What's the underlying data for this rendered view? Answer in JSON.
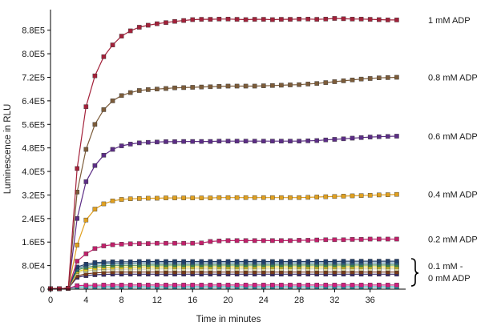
{
  "chart_data": {
    "type": "line",
    "xlabel": "Time in minutes",
    "ylabel": "Luminescence in RLU",
    "xlim": [
      0,
      40
    ],
    "ylim": [
      0,
      950000
    ],
    "x_ticks": [
      0,
      4,
      8,
      12,
      16,
      20,
      24,
      28,
      32,
      36
    ],
    "x_tick_labels": [
      "0",
      "4",
      "8",
      "12",
      "16",
      "20",
      "24",
      "28",
      "32",
      "36"
    ],
    "y_ticks": [
      0,
      80000,
      160000,
      240000,
      320000,
      400000,
      480000,
      560000,
      640000,
      720000,
      800000,
      880000
    ],
    "y_tick_labels": [
      "0",
      "8.0E4",
      "1.6E5",
      "2.4E5",
      "3.2E5",
      "4.0E5",
      "4.8E5",
      "5.6E5",
      "6.4E5",
      "7.2E5",
      "8.0E5",
      "8.8E5"
    ],
    "x": [
      0,
      1,
      2,
      3,
      4,
      5,
      6,
      7,
      8,
      9,
      10,
      11,
      12,
      13,
      14,
      15,
      16,
      17,
      18,
      19,
      20,
      21,
      22,
      23,
      24,
      25,
      26,
      27,
      28,
      29,
      30,
      31,
      32,
      33,
      34,
      35,
      36,
      37,
      38,
      39
    ],
    "series": [
      {
        "name": "1 mM ADP",
        "color": "#a3213a",
        "values": [
          2000,
          2000,
          3000,
          410000,
          620000,
          725000,
          790000,
          830000,
          860000,
          878000,
          890000,
          897000,
          902000,
          906000,
          910000,
          913000,
          916000,
          917000,
          917000,
          918000,
          918000,
          917000,
          916000,
          917000,
          917000,
          916000,
          917000,
          917000,
          918000,
          918000,
          917000,
          918000,
          920000,
          919000,
          918000,
          918000,
          917000,
          916000,
          915000,
          915000
        ]
      },
      {
        "name": "0.8 mM ADP",
        "color": "#7c5c3a",
        "values": [
          2000,
          2000,
          3000,
          330000,
          475000,
          560000,
          610000,
          640000,
          658000,
          668000,
          675000,
          678000,
          680000,
          682000,
          684000,
          685000,
          686000,
          687000,
          688000,
          689000,
          690000,
          690000,
          690000,
          690000,
          691000,
          692000,
          693000,
          694000,
          695000,
          697000,
          699000,
          702000,
          705000,
          708000,
          711000,
          714000,
          716000,
          718000,
          719000,
          720000
        ]
      },
      {
        "name": "0.6 mM ADP",
        "color": "#5c2d86",
        "values": [
          2000,
          2000,
          3000,
          240000,
          365000,
          420000,
          455000,
          475000,
          487000,
          493000,
          497000,
          499000,
          500000,
          501000,
          501000,
          502000,
          502000,
          502000,
          502000,
          503000,
          503000,
          503000,
          503000,
          503000,
          503000,
          503000,
          503000,
          503000,
          503000,
          504000,
          505000,
          507000,
          509000,
          511000,
          513000,
          515000,
          517000,
          518000,
          519000,
          520000
        ]
      },
      {
        "name": "0.4 mM ADP",
        "color": "#e0a020",
        "values": [
          2000,
          2000,
          3000,
          150000,
          235000,
          272000,
          290000,
          300000,
          305000,
          307000,
          308000,
          309000,
          309000,
          310000,
          310000,
          310000,
          310000,
          310000,
          310000,
          311000,
          311000,
          311000,
          311000,
          311000,
          311000,
          311000,
          311000,
          311000,
          311000,
          312000,
          313000,
          314000,
          315000,
          316000,
          317000,
          318000,
          319000,
          320000,
          321000,
          322000
        ]
      },
      {
        "name": "0.2 mM ADP",
        "color": "#c0206a",
        "values": [
          2000,
          2000,
          3000,
          95000,
          120000,
          138000,
          147000,
          151000,
          153000,
          154000,
          155000,
          155000,
          156000,
          156000,
          156000,
          156000,
          156000,
          157000,
          162000,
          164000,
          165000,
          165000,
          165000,
          165000,
          165000,
          165000,
          165000,
          165000,
          166000,
          166000,
          167000,
          168000,
          168000,
          168000,
          169000,
          169000,
          170000,
          170000,
          170000,
          170000
        ]
      },
      {
        "name": "",
        "color": "#1f3e6b",
        "values": [
          2000,
          2000,
          3000,
          75000,
          85000,
          90000,
          92000,
          93000,
          93000,
          93000,
          94000,
          94000,
          94000,
          94000,
          94000,
          94000,
          94000,
          94000,
          94000,
          94000,
          94000,
          94000,
          94000,
          94000,
          94000,
          94000,
          94000,
          94000,
          94000,
          94000,
          94000,
          94000,
          94000,
          95000,
          95000,
          95000,
          95000,
          95000,
          95000,
          95000
        ]
      },
      {
        "name": "",
        "color": "#2f6e8f",
        "values": [
          2000,
          2000,
          3000,
          70000,
          80000,
          85000,
          87000,
          88000,
          88000,
          88000,
          89000,
          89000,
          89000,
          89000,
          89000,
          89000,
          89000,
          89000,
          89000,
          89000,
          89000,
          89000,
          89000,
          89000,
          89000,
          89000,
          89000,
          89000,
          89000,
          89000,
          89000,
          89000,
          89000,
          89000,
          89000,
          89000,
          89000,
          89000,
          89000,
          89000
        ]
      },
      {
        "name": "",
        "color": "#3d8a4a",
        "values": [
          2000,
          2000,
          3000,
          65000,
          74000,
          78000,
          80000,
          81000,
          81000,
          81000,
          81000,
          82000,
          82000,
          82000,
          82000,
          82000,
          82000,
          82000,
          82000,
          82000,
          82000,
          82000,
          82000,
          82000,
          82000,
          82000,
          82000,
          82000,
          82000,
          82000,
          82000,
          82000,
          82000,
          82000,
          82000,
          82000,
          82000,
          82000,
          82000,
          82000
        ]
      },
      {
        "name": "",
        "color": "#e8d020",
        "values": [
          2000,
          2000,
          3000,
          60000,
          68000,
          72000,
          74000,
          75000,
          75000,
          75000,
          75000,
          76000,
          76000,
          76000,
          76000,
          76000,
          76000,
          76000,
          76000,
          76000,
          76000,
          76000,
          76000,
          76000,
          76000,
          76000,
          76000,
          76000,
          76000,
          76000,
          76000,
          76000,
          76000,
          76000,
          76000,
          76000,
          76000,
          76000,
          76000,
          76000
        ]
      },
      {
        "name": "",
        "color": "#d8d8a0",
        "values": [
          2000,
          2000,
          3000,
          55000,
          62000,
          65000,
          67000,
          68000,
          68000,
          68000,
          68000,
          68000,
          69000,
          69000,
          69000,
          69000,
          69000,
          69000,
          69000,
          69000,
          69000,
          69000,
          69000,
          69000,
          69000,
          69000,
          69000,
          69000,
          69000,
          69000,
          69000,
          69000,
          69000,
          69000,
          69000,
          69000,
          69000,
          69000,
          69000,
          69000
        ]
      },
      {
        "name": "",
        "color": "#7a3a1a",
        "values": [
          2000,
          2000,
          3000,
          45000,
          52000,
          55000,
          57000,
          58000,
          58000,
          58000,
          58000,
          58000,
          58000,
          58000,
          58000,
          58000,
          58000,
          58000,
          58000,
          58000,
          58000,
          58000,
          58000,
          58000,
          58000,
          58000,
          58000,
          58000,
          58000,
          58000,
          58000,
          58000,
          58000,
          58000,
          58000,
          58000,
          58000,
          58000,
          58000,
          58000
        ]
      },
      {
        "name": "",
        "color": "#3a2a6a",
        "values": [
          2000,
          2000,
          3000,
          40000,
          46000,
          49000,
          50000,
          51000,
          51000,
          51000,
          51000,
          51000,
          51000,
          51000,
          51000,
          51000,
          51000,
          51000,
          51000,
          51000,
          51000,
          51000,
          51000,
          51000,
          51000,
          51000,
          51000,
          51000,
          51000,
          51000,
          51000,
          51000,
          51000,
          51000,
          51000,
          51000,
          51000,
          51000,
          51000,
          51000
        ]
      },
      {
        "name": "",
        "color": "#d02080",
        "values": [
          2000,
          2000,
          3000,
          12000,
          13000,
          13000,
          14000,
          14000,
          14000,
          14000,
          14000,
          14000,
          14000,
          14000,
          14000,
          14000,
          14000,
          14000,
          14000,
          14000,
          14000,
          14000,
          14000,
          14000,
          14000,
          14000,
          14000,
          14000,
          14000,
          14000,
          14000,
          14000,
          14000,
          14000,
          14000,
          14000,
          14000,
          14000,
          14000,
          14000
        ]
      },
      {
        "name": "",
        "color": "#2aa0b0",
        "values": [
          2000,
          2000,
          3000,
          7000,
          8000,
          8000,
          8000,
          8000,
          8000,
          8000,
          8000,
          8000,
          8000,
          8000,
          8000,
          8000,
          8000,
          8000,
          8000,
          8000,
          8000,
          8000,
          8000,
          8000,
          8000,
          8000,
          8000,
          8000,
          8000,
          8000,
          8000,
          8000,
          8000,
          8000,
          8000,
          8000,
          8000,
          8000,
          8000,
          8000
        ]
      }
    ],
    "annotations": [
      {
        "text": "1 mM ADP",
        "series": 0
      },
      {
        "text": "0.8 mM ADP",
        "series": 1
      },
      {
        "text": "0.6 mM ADP",
        "series": 2
      },
      {
        "text": "0.4 mM ADP",
        "series": 3
      },
      {
        "text": "0.2 mM ADP",
        "series": 4
      }
    ],
    "bracket_label": [
      "0.1 mM -",
      "0 mM ADP"
    ],
    "grid": false,
    "legend": "none"
  }
}
